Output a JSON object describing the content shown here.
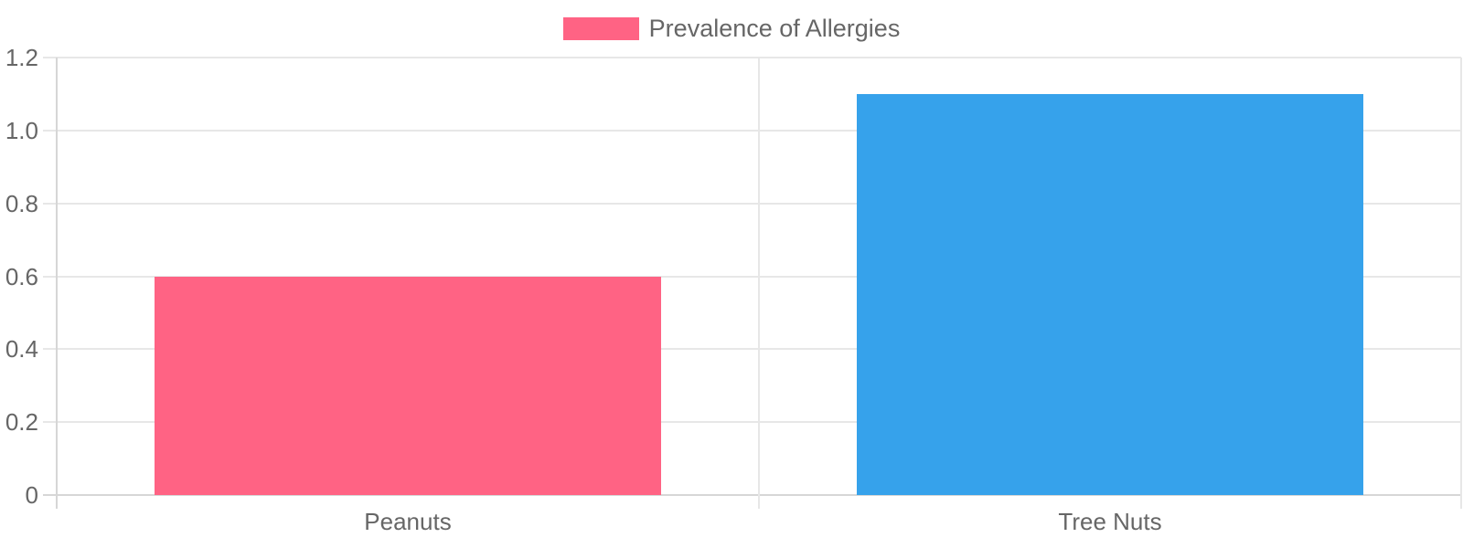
{
  "chart_data": {
    "type": "bar",
    "categories": [
      "Peanuts",
      "Tree Nuts"
    ],
    "values": [
      0.6,
      1.1
    ],
    "series": [
      {
        "name": "Prevalence of Allergies",
        "values": [
          0.6,
          1.1
        ]
      }
    ],
    "bar_colors": [
      "#FF6384",
      "#36A2EB"
    ],
    "title": "",
    "xlabel": "",
    "ylabel": "",
    "ylim": [
      0,
      1.2
    ],
    "ytick_labels": [
      "0",
      "0.2",
      "0.4",
      "0.6",
      "0.8",
      "1.0",
      "1.2"
    ],
    "grid": true,
    "legend": {
      "position": "top",
      "label": "Prevalence of Allergies",
      "swatch_color": "#FF6384"
    },
    "colors": {
      "text": "#666666",
      "grid_line": "#E7E7E7",
      "axis_line": "#D6D6D6"
    }
  }
}
